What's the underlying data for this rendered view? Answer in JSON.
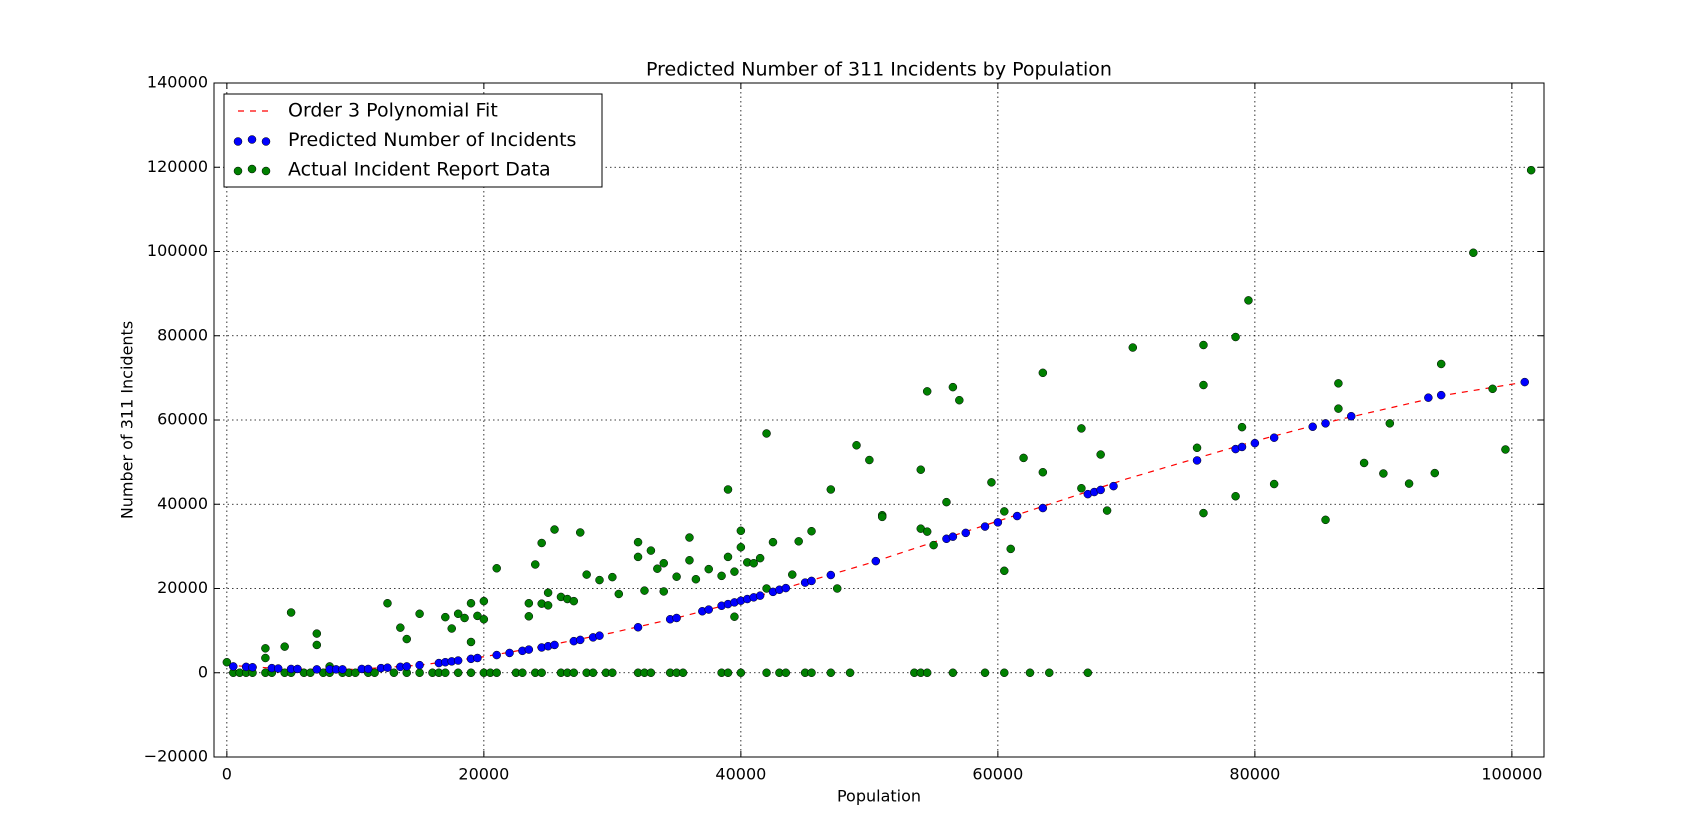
{
  "chart_data": {
    "type": "scatter",
    "title": "Predicted Number of 311 Incidents by Population",
    "x_label": "Population",
    "y_label": "Number of 311 Incidents",
    "xlim": [
      -1000,
      102500
    ],
    "ylim": [
      -20000,
      140000
    ],
    "xticks": [
      0,
      20000,
      40000,
      60000,
      80000,
      100000
    ],
    "yticks": [
      {
        "value": -20000,
        "label": "−20000"
      },
      0,
      20000,
      40000,
      60000,
      80000,
      100000,
      120000,
      140000
    ],
    "grid": true,
    "legend": "upper left",
    "series": [
      {
        "name": " Order 3 Polynomial Fit",
        "color": "#ff0000",
        "style": "dashed-line",
        "x": [
          0,
          5000,
          10000,
          15000,
          20000,
          25000,
          30000,
          35000,
          40000,
          45000,
          50000,
          55000,
          60000,
          65000,
          70000,
          75000,
          80000,
          85000,
          90000,
          95000,
          100000,
          101000
        ],
        "values": [
          1800,
          800,
          800,
          1800,
          3800,
          6500,
          9500,
          13000,
          17000,
          21500,
          26000,
          31000,
          36000,
          41000,
          46000,
          50500,
          55000,
          59000,
          62500,
          66000,
          68500,
          69000
        ]
      },
      {
        "name": "Predicted Number of Incidents",
        "color": "#0000ff",
        "style": "points",
        "x": [
          500,
          1500,
          2000,
          3500,
          4000,
          5000,
          5500,
          7000,
          8000,
          8500,
          9000,
          10500,
          11000,
          12000,
          12500,
          13500,
          14000,
          15000,
          16500,
          17000,
          17500,
          18000,
          19000,
          19500,
          21000,
          22000,
          23000,
          23500,
          24500,
          25000,
          25500,
          27000,
          27500,
          28500,
          29000,
          32000,
          34500,
          35000,
          37000,
          37500,
          38500,
          39000,
          39500,
          40000,
          40500,
          41000,
          41500,
          42500,
          43000,
          43500,
          45000,
          45500,
          47000,
          50500,
          56000,
          56500,
          57500,
          59000,
          60000,
          61500,
          63500,
          67000,
          67500,
          68000,
          69000,
          75500,
          78500,
          79000,
          80000,
          81500,
          84500,
          85500,
          87500,
          93500,
          94500,
          101000
        ],
        "values": [
          1500,
          1400,
          1300,
          1100,
          1000,
          900,
          900,
          800,
          800,
          800,
          800,
          900,
          900,
          1100,
          1200,
          1400,
          1500,
          1800,
          2300,
          2500,
          2700,
          2900,
          3300,
          3500,
          4200,
          4700,
          5200,
          5500,
          6000,
          6300,
          6600,
          7500,
          7800,
          8400,
          8800,
          10800,
          12700,
          13000,
          14600,
          15000,
          15900,
          16300,
          16700,
          17100,
          17500,
          17900,
          18300,
          19200,
          19700,
          20100,
          21400,
          21800,
          23200,
          26500,
          31800,
          32300,
          33200,
          34700,
          35700,
          37200,
          39100,
          42400,
          42900,
          43400,
          44300,
          50400,
          53100,
          53600,
          54500,
          55800,
          58400,
          59200,
          60900,
          65300,
          65900,
          69000
        ]
      },
      {
        "name": "Actual Incident Report Data",
        "color": "#008000",
        "style": "points",
        "x": [
          500,
          1000,
          1500,
          2000,
          3000,
          3500,
          4500,
          5000,
          6000,
          6500,
          7500,
          8000,
          9000,
          9500,
          10000,
          11000,
          11500,
          13000,
          14000,
          15000,
          16000,
          16500,
          17000,
          18000,
          19000,
          20000,
          20500,
          21000,
          22500,
          23000,
          24000,
          24500,
          26000,
          26500,
          27000,
          28000,
          28500,
          29500,
          30000,
          32000,
          32500,
          33000,
          34500,
          35000,
          35500,
          38500,
          39000,
          40000,
          42000,
          43000,
          43500,
          45000,
          45500,
          47000,
          48500,
          53500,
          54000,
          54500,
          56500,
          59000,
          60500,
          62500,
          64000,
          67000,
          0,
          3000,
          3000,
          4500,
          5000,
          7000,
          7000,
          8000,
          12500,
          13500,
          14000,
          15000,
          17000,
          17500,
          18000,
          18500,
          19000,
          19000,
          19500,
          20000,
          20000,
          21000,
          23500,
          23500,
          24000,
          24500,
          24500,
          25000,
          25000,
          25500,
          26000,
          26500,
          27000,
          27500,
          28000,
          29000,
          30000,
          30500,
          32000,
          32000,
          32500,
          33000,
          33500,
          34000,
          34000,
          35000,
          36000,
          36000,
          36500,
          37500,
          38500,
          39000,
          39000,
          39500,
          39500,
          40000,
          40000,
          40500,
          41000,
          41500,
          42000,
          42000,
          42500,
          44000,
          44500,
          45500,
          47000,
          47500,
          49000,
          50000,
          51000,
          51000,
          54000,
          54000,
          54500,
          54500,
          55000,
          56000,
          56500,
          57000,
          59500,
          60500,
          60500,
          61000,
          62000,
          63500,
          63500,
          66500,
          66500,
          68000,
          68500,
          70500,
          75500,
          76000,
          76000,
          76000,
          78500,
          78500,
          79000,
          79500,
          81500,
          85500,
          86500,
          86500,
          88500,
          90000,
          90500,
          92000,
          94000,
          94500,
          97000,
          98500,
          99500,
          101500
        ],
        "values": [
          0,
          0,
          0,
          0,
          0,
          0,
          0,
          0,
          0,
          0,
          0,
          0,
          0,
          0,
          0,
          0,
          0,
          0,
          0,
          0,
          0,
          0,
          0,
          0,
          0,
          0,
          0,
          0,
          0,
          0,
          0,
          0,
          0,
          0,
          0,
          0,
          0,
          0,
          0,
          0,
          0,
          0,
          0,
          0,
          0,
          0,
          0,
          0,
          0,
          0,
          0,
          0,
          0,
          0,
          0,
          0,
          0,
          0,
          0,
          0,
          0,
          0,
          0,
          0,
          2500,
          3500,
          5800,
          6200,
          14300,
          9300,
          6600,
          1500,
          16500,
          10700,
          8000,
          14000,
          13200,
          10500,
          14000,
          13000,
          16500,
          7300,
          13500,
          12700,
          17000,
          24800,
          16500,
          13400,
          25700,
          16400,
          30800,
          19000,
          16000,
          34000,
          18000,
          17500,
          17000,
          33300,
          23300,
          22000,
          22700,
          18700,
          31000,
          27500,
          19500,
          29000,
          24700,
          26000,
          19300,
          22800,
          32100,
          26700,
          22200,
          24600,
          23000,
          43500,
          27500,
          24000,
          13300,
          29800,
          33700,
          26200,
          26000,
          27200,
          56800,
          20000,
          31000,
          23300,
          31200,
          33600,
          43500,
          20000,
          54000,
          50500,
          37400,
          37000,
          48200,
          34200,
          66800,
          33500,
          30300,
          40500,
          67800,
          64700,
          45200,
          24200,
          38300,
          29400,
          51000,
          47600,
          71200,
          58000,
          43800,
          51800,
          38500,
          77200,
          53400,
          37900,
          77800,
          68300,
          79700,
          41900,
          58300,
          88400,
          44800,
          36300,
          68700,
          62700,
          49800,
          47300,
          59200,
          44900,
          47400,
          73300,
          99700,
          67400,
          53000,
          119300
        ]
      }
    ]
  }
}
